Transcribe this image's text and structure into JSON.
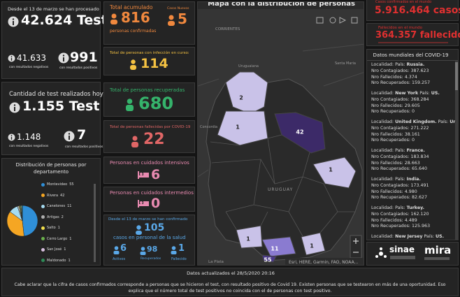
{
  "left": {
    "processed": {
      "caption": "Desde el 13 de marzo se han procesado",
      "total": "42.624",
      "unit": "Test",
      "negative": "41.633",
      "negative_caption": "con resultados negativos",
      "positive": "991",
      "positive_caption": "con resultados positivos"
    },
    "today": {
      "caption": "Cantidad de test realizados hoy",
      "total": "1.155",
      "unit": "Test",
      "negative": "1.148",
      "negative_caption": "con resultados negativos",
      "positive": "7",
      "positive_caption": "con resultados positivos"
    },
    "departments": {
      "title": "Distribución de personas por departamento",
      "items": [
        {
          "name": "Montevideo",
          "count": 55,
          "color": "#2f8fd8"
        },
        {
          "name": "Rivera",
          "count": 42,
          "color": "#f5a623"
        },
        {
          "name": "Canelones",
          "count": 11,
          "color": "#a6dcf2"
        },
        {
          "name": "Artigas",
          "count": 2,
          "color": "#b0b0b0"
        },
        {
          "name": "Salto",
          "count": 1,
          "color": "#f3e04b"
        },
        {
          "name": "Cerro Largo",
          "count": 1,
          "color": "#6ab04c"
        },
        {
          "name": "San José",
          "count": 1,
          "color": "#d9c0e0"
        },
        {
          "name": "Maldonado",
          "count": 1,
          "color": "#2e8b57"
        }
      ]
    }
  },
  "middle": {
    "accumulated": {
      "title": "Total acumulado",
      "confirmed": "816",
      "confirmed_caption": "personas confirmadas",
      "new_title": "Casos Nuevos",
      "new": "5"
    },
    "active": {
      "title": "Total de personas con infección en curso:",
      "value": "114"
    },
    "recovered": {
      "title": "Total de personas recuperadas",
      "value": "680"
    },
    "deceased": {
      "title": "Total de personas fallecidas por COVID-19",
      "value": "22"
    },
    "icu": {
      "title": "Personas en cuidados intensivos",
      "value": "6"
    },
    "intermediate": {
      "title": "Personas en cuidados intermedios",
      "value": "0"
    },
    "health": {
      "caption": "Desde el 13 de marzo se han confirmado",
      "value": "105",
      "caption2": "casos en personal de la salud",
      "active": "6",
      "active_label": "Activos",
      "recovered": "98",
      "recovered_label": "Recuperados",
      "deceased": "1",
      "deceased_label": "Fallecido"
    }
  },
  "map": {
    "title": "Mapa con la distribución de personas",
    "places": [
      "CORRIENTES",
      "Uruguaiana",
      "Santa Maria",
      "Concordia",
      "URUGUAY",
      "La Plata"
    ],
    "attribution": "Esri, HERE, Garmin, FAO, NOAA..."
  },
  "world": {
    "cases_caption": "Casos confirmados en el mundo",
    "cases": "5.916.464 casos",
    "deaths_caption": "Fallecidos en el mundo",
    "deaths": "364.357 fallecidos",
    "list_title": "Datos mundiales del COVID-19",
    "labels": {
      "localidad": "Localidad:",
      "pais": "País:",
      "contagiados": "Nro Contagiados:",
      "fallecidos": "Nro Fallecidos:",
      "recuperados": "Nro Recuperados:"
    },
    "items": [
      {
        "pais": "Russia.",
        "contagiados": "387.623",
        "fallecidos": "4.374",
        "recuperados": "159.257"
      },
      {
        "localidad": "New York",
        "pais": "US.",
        "contagiados": "368.284",
        "fallecidos": "29.605",
        "recuperados": "0"
      },
      {
        "localidad": "United Kingdom.",
        "pais": "United Kingdom.",
        "contagiados": "271.222",
        "fallecidos": "38.161",
        "recuperados": "0"
      },
      {
        "pais": "France.",
        "contagiados": "183.834",
        "fallecidos": "28.663",
        "recuperados": "65.640"
      },
      {
        "pais": "India.",
        "contagiados": "173.491",
        "fallecidos": "4.980",
        "recuperados": "82.627"
      },
      {
        "pais": "Turkey.",
        "contagiados": "162.120",
        "fallecidos": "4.489",
        "recuperados": "125.963"
      },
      {
        "localidad": "New Jersey",
        "pais": "US."
      }
    ]
  },
  "logos": {
    "sinae": "sinae",
    "mira": "mira"
  },
  "footer": {
    "updated": "Datos actualizados el 28/5/2020 20:16",
    "note": "Cabe aclarar que la cifra de casos confirmados corresponde a personas que se hicieron el test, con resultado positivo de Covid 19. Existen personas que se testearon en más de una oportunidad. Eso explica que el número total de test positivos no coincida con el de personas con test positivo."
  }
}
